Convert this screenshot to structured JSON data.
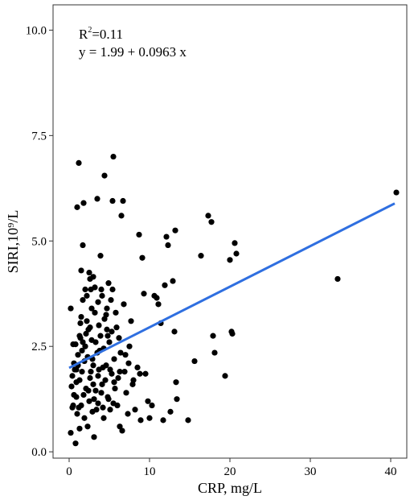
{
  "chart_data": {
    "type": "scatter",
    "xlabel": "CRP, mg/L",
    "ylabel": "SIRI,10⁹/L",
    "xlim": [
      -2,
      42
    ],
    "ylim": [
      -0.15,
      10.6
    ],
    "x_ticks": [
      0,
      10,
      20,
      30,
      40
    ],
    "x_tick_labels": [
      "0",
      "10",
      "20",
      "30",
      "40"
    ],
    "y_ticks": [
      0,
      2.5,
      5,
      7.5,
      10
    ],
    "y_tick_labels": [
      "0.0",
      "2.5",
      "5.0",
      "7.5",
      "10.0"
    ],
    "grid": false,
    "annotation": {
      "r2_label": "R",
      "r2_exponent": "2",
      "r2_value": "=0.11",
      "equation": "y = 1.99 + 0.0963 x"
    },
    "regression": {
      "intercept": 1.99,
      "slope": 0.0963,
      "x_range": [
        0,
        40.5
      ],
      "color": "#2f6fe0"
    },
    "point_color": "#000000",
    "points": [
      [
        0.2,
        0.45
      ],
      [
        0.5,
        1.1
      ],
      [
        0.3,
        1.55
      ],
      [
        0.4,
        1.8
      ],
      [
        0.6,
        2.1
      ],
      [
        0.2,
        3.4
      ],
      [
        0.8,
        2.55
      ],
      [
        0.9,
        1.3
      ],
      [
        1.0,
        0.9
      ],
      [
        0.8,
        0.2
      ],
      [
        1.0,
        5.8
      ],
      [
        1.2,
        6.85
      ],
      [
        1.1,
        2.3
      ],
      [
        1.3,
        1.7
      ],
      [
        1.5,
        3.2
      ],
      [
        1.4,
        2.7
      ],
      [
        1.6,
        1.9
      ],
      [
        1.5,
        1.1
      ],
      [
        1.7,
        4.9
      ],
      [
        1.8,
        5.9
      ],
      [
        1.9,
        0.8
      ],
      [
        2.0,
        2.5
      ],
      [
        2.1,
        1.5
      ],
      [
        2.2,
        3.7
      ],
      [
        2.3,
        0.6
      ],
      [
        2.4,
        2.9
      ],
      [
        2.5,
        1.2
      ],
      [
        2.6,
        4.1
      ],
      [
        2.7,
        1.9
      ],
      [
        2.8,
        3.4
      ],
      [
        2.9,
        2.2
      ],
      [
        3.0,
        1.6
      ],
      [
        3.1,
        0.35
      ],
      [
        3.2,
        3.9
      ],
      [
        3.3,
        2.6
      ],
      [
        3.4,
        1.0
      ],
      [
        3.5,
        6.0
      ],
      [
        3.6,
        1.8
      ],
      [
        3.7,
        3.0
      ],
      [
        3.8,
        2.4
      ],
      [
        3.9,
        4.65
      ],
      [
        4.0,
        1.4
      ],
      [
        4.1,
        3.7
      ],
      [
        4.2,
        2.0
      ],
      [
        4.3,
        0.8
      ],
      [
        4.4,
        6.55
      ],
      [
        4.5,
        1.7
      ],
      [
        4.6,
        3.25
      ],
      [
        4.7,
        2.9
      ],
      [
        4.8,
        1.3
      ],
      [
        4.9,
        4.0
      ],
      [
        5.0,
        2.6
      ],
      [
        5.1,
        1.0
      ],
      [
        5.2,
        3.6
      ],
      [
        5.3,
        1.85
      ],
      [
        5.4,
        5.95
      ],
      [
        5.5,
        7.0
      ],
      [
        5.6,
        2.2
      ],
      [
        5.7,
        1.5
      ],
      [
        5.8,
        3.3
      ],
      [
        6.0,
        1.1
      ],
      [
        6.2,
        2.7
      ],
      [
        6.3,
        1.9
      ],
      [
        6.5,
        5.6
      ],
      [
        6.6,
        0.5
      ],
      [
        6.7,
        5.95
      ],
      [
        6.8,
        3.5
      ],
      [
        7.0,
        2.3
      ],
      [
        7.1,
        1.4
      ],
      [
        7.3,
        0.9
      ],
      [
        7.5,
        2.5
      ],
      [
        7.7,
        3.1
      ],
      [
        7.9,
        1.6
      ],
      [
        8.2,
        1.0
      ],
      [
        8.5,
        2.0
      ],
      [
        8.7,
        5.15
      ],
      [
        8.9,
        0.75
      ],
      [
        9.1,
        4.6
      ],
      [
        9.3,
        3.75
      ],
      [
        9.5,
        1.85
      ],
      [
        9.8,
        1.2
      ],
      [
        10.0,
        0.8
      ],
      [
        10.3,
        1.1
      ],
      [
        10.6,
        3.7
      ],
      [
        10.9,
        3.65
      ],
      [
        11.1,
        3.5
      ],
      [
        11.4,
        3.05
      ],
      [
        11.7,
        0.75
      ],
      [
        11.9,
        3.95
      ],
      [
        12.1,
        5.1
      ],
      [
        12.3,
        4.9
      ],
      [
        12.6,
        0.95
      ],
      [
        12.9,
        4.05
      ],
      [
        13.1,
        2.85
      ],
      [
        13.2,
        5.25
      ],
      [
        13.3,
        1.65
      ],
      [
        13.4,
        1.25
      ],
      [
        14.8,
        0.75
      ],
      [
        15.6,
        2.15
      ],
      [
        16.4,
        4.65
      ],
      [
        17.3,
        5.6
      ],
      [
        17.7,
        5.45
      ],
      [
        17.9,
        2.75
      ],
      [
        18.1,
        2.35
      ],
      [
        19.4,
        1.8
      ],
      [
        20.0,
        4.55
      ],
      [
        20.2,
        2.85
      ],
      [
        20.3,
        2.8
      ],
      [
        20.6,
        4.95
      ],
      [
        20.8,
        4.7
      ],
      [
        33.4,
        4.1
      ],
      [
        40.7,
        6.15
      ],
      [
        0.5,
        2.55
      ],
      [
        0.7,
        1.95
      ],
      [
        0.9,
        1.65
      ],
      [
        1.1,
        2.05
      ],
      [
        1.3,
        2.75
      ],
      [
        1.6,
        2.4
      ],
      [
        1.9,
        2.15
      ],
      [
        2.1,
        2.8
      ],
      [
        2.3,
        2.25
      ],
      [
        2.6,
        1.75
      ],
      [
        2.8,
        2.65
      ],
      [
        3.0,
        2.05
      ],
      [
        3.3,
        1.45
      ],
      [
        3.5,
        2.35
      ],
      [
        3.7,
        1.95
      ],
      [
        3.9,
        2.75
      ],
      [
        4.1,
        1.6
      ],
      [
        4.3,
        2.45
      ],
      [
        4.6,
        2.05
      ],
      [
        4.8,
        2.75
      ],
      [
        5.1,
        1.95
      ],
      [
        5.3,
        2.85
      ],
      [
        5.6,
        1.65
      ],
      [
        5.9,
        2.95
      ],
      [
        6.1,
        1.75
      ],
      [
        6.4,
        2.35
      ],
      [
        6.9,
        1.9
      ],
      [
        7.4,
        2.1
      ],
      [
        8.0,
        1.7
      ],
      [
        8.8,
        1.85
      ],
      [
        0.6,
        1.35
      ],
      [
        1.2,
        1.05
      ],
      [
        1.8,
        1.35
      ],
      [
        2.4,
        1.45
      ],
      [
        3.1,
        1.25
      ],
      [
        3.6,
        1.15
      ],
      [
        4.2,
        1.05
      ],
      [
        4.9,
        1.25
      ],
      [
        5.5,
        1.15
      ],
      [
        6.3,
        0.6
      ],
      [
        1.4,
        3.05
      ],
      [
        1.7,
        3.6
      ],
      [
        2.2,
        3.1
      ],
      [
        2.7,
        3.85
      ],
      [
        3.2,
        3.3
      ],
      [
        3.6,
        3.55
      ],
      [
        4.0,
        3.85
      ],
      [
        4.4,
        3.15
      ],
      [
        4.7,
        3.4
      ],
      [
        5.4,
        3.85
      ],
      [
        2.5,
        4.25
      ],
      [
        3.0,
        4.15
      ],
      [
        2.0,
        3.85
      ],
      [
        1.5,
        4.3
      ],
      [
        2.9,
        0.95
      ],
      [
        1.3,
        0.55
      ],
      [
        0.4,
        1.05
      ],
      [
        0.9,
        1.95
      ],
      [
        1.7,
        2.6
      ],
      [
        2.6,
        2.95
      ]
    ]
  }
}
